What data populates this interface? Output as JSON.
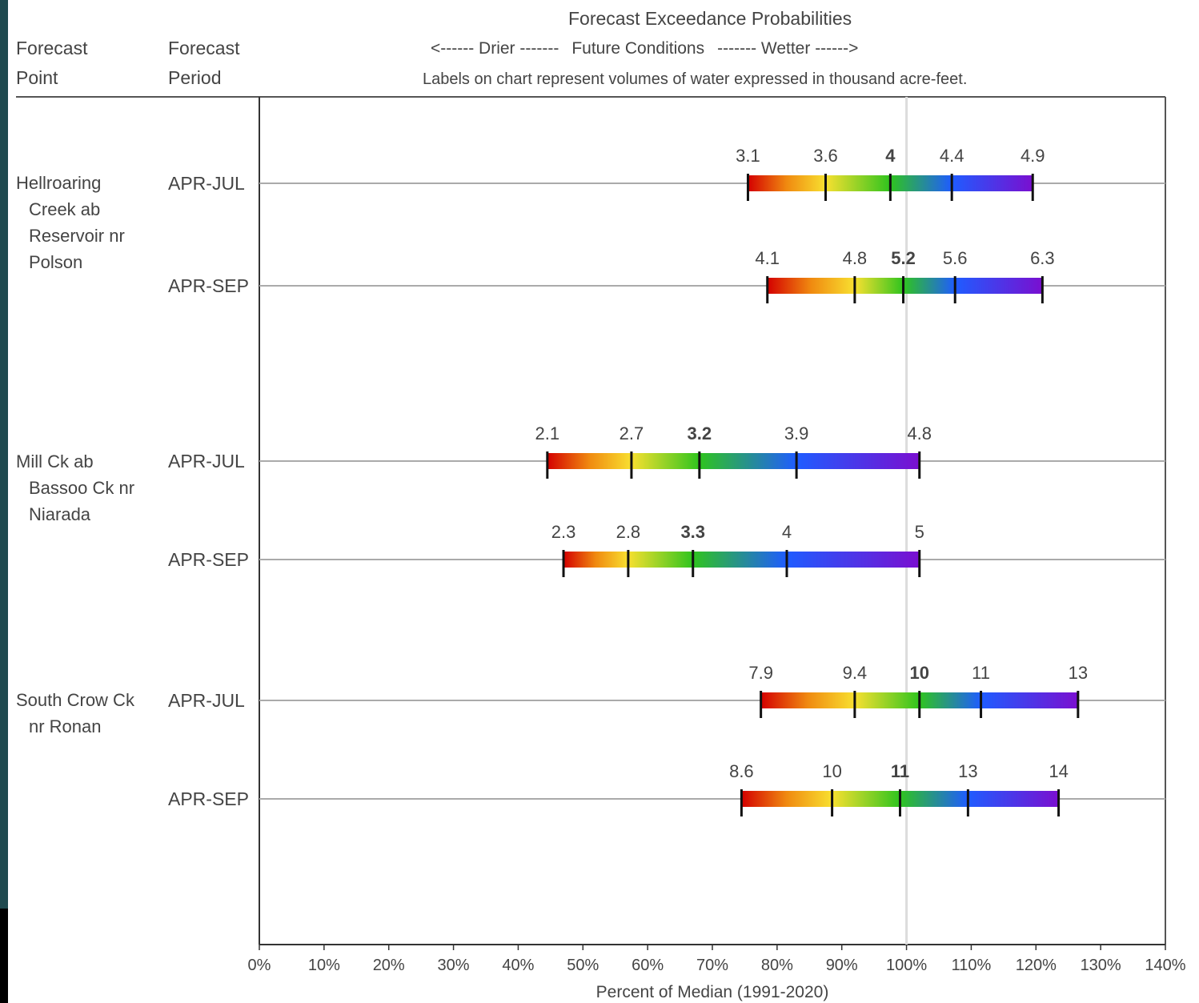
{
  "header": {
    "title": "Forecast Exceedance Probabilities",
    "col_point": [
      "Forecast",
      "Point"
    ],
    "col_period": [
      "Forecast",
      "Period"
    ],
    "scale": [
      "<------ Drier -------",
      "Future Conditions",
      "------- Wetter ------>"
    ],
    "note": "Labels on chart represent volumes of water expressed in thousand acre-feet."
  },
  "points": [
    {
      "lines": [
        "Hellroaring",
        "Creek ab",
        "Reservoir nr",
        "Polson"
      ]
    },
    {
      "lines": [
        "Mill Ck ab",
        "Bassoo Ck nr",
        "Niarada"
      ]
    },
    {
      "lines": [
        "South Crow Ck",
        "nr Ronan"
      ]
    }
  ],
  "chart_data": {
    "type": "bar",
    "title": "Forecast Exceedance Probabilities",
    "xlabel": "Percent of Median (1991-2020)",
    "xlim": [
      0,
      140
    ],
    "x_ticks": [
      "0%",
      "10%",
      "20%",
      "30%",
      "40%",
      "50%",
      "60%",
      "70%",
      "80%",
      "90%",
      "100%",
      "110%",
      "120%",
      "130%",
      "140%"
    ],
    "median_line": 100,
    "bold_index": 2,
    "colors": [
      "#d40000",
      "#f8e030",
      "#2fc41e",
      "#1f5cff",
      "#7a0fd0"
    ],
    "series": [
      {
        "point": 0,
        "period": "APR-JUL",
        "percents": [
          75.5,
          87.5,
          97.5,
          107,
          119.5
        ],
        "labels": [
          "3.1",
          "3.6",
          "4",
          "4.4",
          "4.9"
        ]
      },
      {
        "point": 0,
        "period": "APR-SEP",
        "percents": [
          78.5,
          92,
          99.5,
          107.5,
          121
        ],
        "labels": [
          "4.1",
          "4.8",
          "5.2",
          "5.6",
          "6.3"
        ]
      },
      {
        "point": 1,
        "period": "APR-JUL",
        "percents": [
          44.5,
          57.5,
          68,
          83,
          102
        ],
        "labels": [
          "2.1",
          "2.7",
          "3.2",
          "3.9",
          "4.8"
        ]
      },
      {
        "point": 1,
        "period": "APR-SEP",
        "percents": [
          47,
          57,
          67,
          81.5,
          102
        ],
        "labels": [
          "2.3",
          "2.8",
          "3.3",
          "4",
          "5"
        ]
      },
      {
        "point": 2,
        "period": "APR-JUL",
        "percents": [
          77.5,
          92,
          102,
          111.5,
          126.5
        ],
        "labels": [
          "7.9",
          "9.4",
          "10",
          "11",
          "13"
        ]
      },
      {
        "point": 2,
        "period": "APR-SEP",
        "percents": [
          74.5,
          88.5,
          99,
          109.5,
          123.5
        ],
        "labels": [
          "8.6",
          "10",
          "11",
          "13",
          "14"
        ]
      }
    ]
  }
}
